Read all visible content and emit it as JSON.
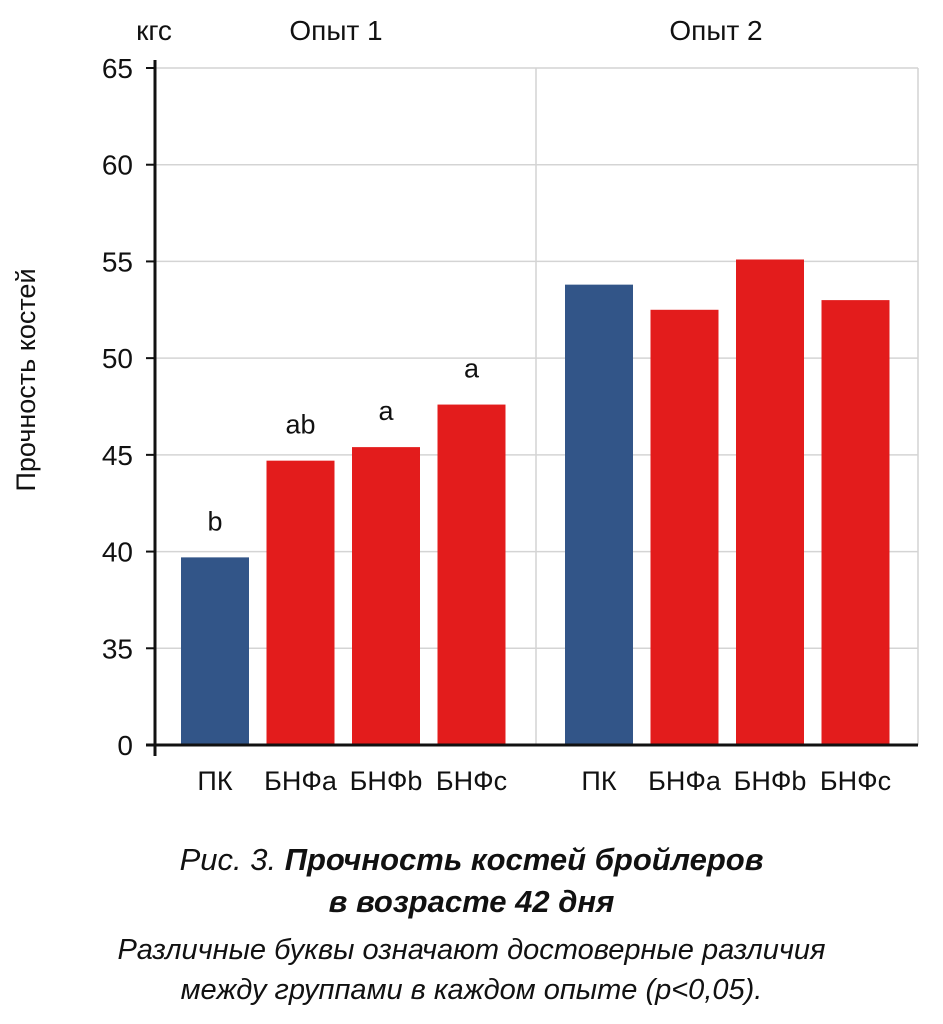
{
  "chart_data": {
    "type": "bar",
    "unit_label": "кгс",
    "ylabel": "Прочность костей",
    "y_ticks": [
      "65",
      "60",
      "55",
      "50",
      "45",
      "40",
      "35",
      "0"
    ],
    "y_tick_values": [
      65,
      60,
      55,
      50,
      45,
      40,
      35,
      30
    ],
    "y_axis_break": "0 shown at baseline; scale 30–65",
    "ylim": [
      30,
      65
    ],
    "grid": true,
    "groups": [
      {
        "title": "Опыт 1",
        "categories": [
          "ПК",
          "БНФа",
          "БНФb",
          "БНФc"
        ],
        "values": [
          39.7,
          44.7,
          45.4,
          47.6
        ],
        "significance_letters": [
          "b",
          "ab",
          "a",
          "a"
        ],
        "colors": [
          "#325588",
          "#e31c1c",
          "#e31c1c",
          "#e31c1c"
        ]
      },
      {
        "title": "Опыт 2",
        "categories": [
          "ПК",
          "БНФа",
          "БНФb",
          "БНФc"
        ],
        "values": [
          53.8,
          52.5,
          55.1,
          53.0
        ],
        "significance_letters": [
          "",
          "",
          "",
          ""
        ],
        "colors": [
          "#325588",
          "#e31c1c",
          "#e31c1c",
          "#e31c1c"
        ]
      }
    ]
  },
  "caption": {
    "fig_prefix": "Рис. 3. ",
    "title_line1": "Прочность костей бройлеров",
    "title_line2": "в возрасте 42 дня",
    "note_line1": "Различные буквы означают достоверные различия",
    "note_line2": "между группами в каждом опыте (p<0,05)."
  }
}
